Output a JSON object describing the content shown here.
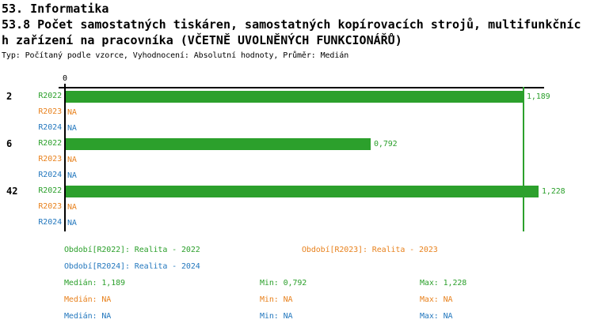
{
  "header": {
    "section_title": "53. Informatika",
    "indicator_title_line1": "53.8 Počet samostatných tiskáren, samostatných kopírovacích strojů, multifunkčníc",
    "indicator_title_line2": "h zařízení na pracovníka (VČETNĚ UVOLNĚNÝCH FUNKCIONÁŘŮ)",
    "meta": "Typ: Počítaný podle vzorce, Vyhodnocení: Absolutní hodnoty, Průměr: Medián"
  },
  "colors": {
    "r2022": "#2CA02C",
    "r2023": "#E8821E",
    "r2024": "#2478BE",
    "axis": "#000000",
    "median_line": "#2CA02C"
  },
  "chart_data": {
    "type": "bar",
    "orientation": "horizontal",
    "axis_zero_label": "0",
    "xlim": [
      0,
      1.26
    ],
    "median_marker": 1.189,
    "grid": false,
    "categories": [
      "2",
      "6",
      "42"
    ],
    "series": [
      {
        "name": "R2022",
        "values": [
          1.189,
          0.792,
          1.228
        ]
      },
      {
        "name": "R2023",
        "values": [
          null,
          null,
          null
        ]
      },
      {
        "name": "R2024",
        "values": [
          null,
          null,
          null
        ]
      }
    ],
    "groups": [
      {
        "label": "2",
        "rows": [
          {
            "series": "R2022",
            "value": 1.189,
            "display": "1,189"
          },
          {
            "series": "R2023",
            "value": null,
            "display": "NA"
          },
          {
            "series": "R2024",
            "value": null,
            "display": "NA"
          }
        ]
      },
      {
        "label": "6",
        "rows": [
          {
            "series": "R2022",
            "value": 0.792,
            "display": "0,792"
          },
          {
            "series": "R2023",
            "value": null,
            "display": "NA"
          },
          {
            "series": "R2024",
            "value": null,
            "display": "NA"
          }
        ]
      },
      {
        "label": "42",
        "rows": [
          {
            "series": "R2022",
            "value": 1.228,
            "display": "1,228"
          },
          {
            "series": "R2023",
            "value": null,
            "display": "NA"
          },
          {
            "series": "R2024",
            "value": null,
            "display": "NA"
          }
        ]
      }
    ]
  },
  "legend": {
    "periods": [
      {
        "label": "Období[R2022]: Realita - 2022"
      },
      {
        "label": "Období[R2023]: Realita - 2023"
      },
      {
        "label": "Období[R2024]: Realita - 2024"
      }
    ],
    "stats": [
      {
        "median": "Medián: 1,189",
        "min": "Min: 0,792",
        "max": "Max: 1,228"
      },
      {
        "median": "Medián: NA",
        "min": "Min: NA",
        "max": "Max: NA"
      },
      {
        "median": "Medián: NA",
        "min": "Min: NA",
        "max": "Max: NA"
      }
    ]
  }
}
